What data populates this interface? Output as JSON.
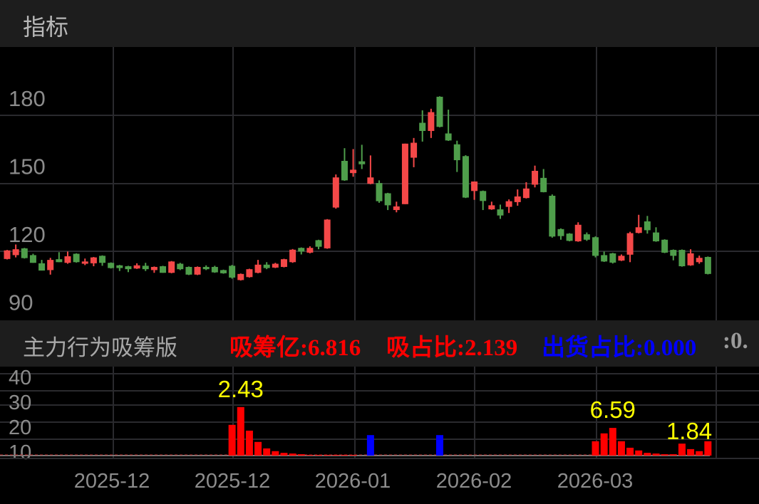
{
  "header": {
    "title": "指标"
  },
  "legend": {
    "indicator_name": "主力行为吸筹版",
    "absorb_amount": "吸筹亿:6.816",
    "absorb_ratio": "吸占比:2.139",
    "ship_ratio": "出货占比:0.000",
    "truncated": ":0."
  },
  "colors": {
    "up": "#f44848",
    "down": "#4f9e4b",
    "absorb": "#ff0000",
    "ship": "#0000ff",
    "annotation": "#ffff00",
    "legend_red": "#ff0000",
    "legend_blue": "#0000ff",
    "axis_text": "#8c8c8c"
  },
  "chart_data": [
    {
      "type": "candlestick",
      "yticks": [
        180,
        150,
        120,
        90
      ],
      "ylim": [
        90,
        180
      ],
      "grid": true,
      "ohlc": [
        [
          116.6,
          120.6,
          116.4,
          120.4
        ],
        [
          118.3,
          123.0,
          117.3,
          120.9
        ],
        [
          121.3,
          121.5,
          116.8,
          117.0
        ],
        [
          118.3,
          118.9,
          114.9,
          114.9
        ],
        [
          114.7,
          116.2,
          111.5,
          111.5
        ],
        [
          111.7,
          117.1,
          109.7,
          116.2
        ],
        [
          116.5,
          119.6,
          115.2,
          115.2
        ],
        [
          114.9,
          119.9,
          114.5,
          117.8
        ],
        [
          118.9,
          119.1,
          115.0,
          115.2
        ],
        [
          114.5,
          116.8,
          113.9,
          115.5
        ],
        [
          114.7,
          117.5,
          113.4,
          117.3
        ],
        [
          118.0,
          118.2,
          113.6,
          114.9
        ],
        [
          114.9,
          115.1,
          112.4,
          112.6
        ],
        [
          113.8,
          114.0,
          111.3,
          112.6
        ],
        [
          113.4,
          113.6,
          110.8,
          112.1
        ],
        [
          112.4,
          114.7,
          112.2,
          113.8
        ],
        [
          113.6,
          114.9,
          111.3,
          112.1
        ],
        [
          111.7,
          113.3,
          110.5,
          113.1
        ],
        [
          113.4,
          113.6,
          110.5,
          110.5
        ],
        [
          110.5,
          115.7,
          110.3,
          115.5
        ],
        [
          114.5,
          114.9,
          111.7,
          112.1
        ],
        [
          113.1,
          113.3,
          109.5,
          109.7
        ],
        [
          109.7,
          113.3,
          109.5,
          113.1
        ],
        [
          113.1,
          113.8,
          111.7,
          112.1
        ],
        [
          113.1,
          113.6,
          110.5,
          110.7
        ],
        [
          111.7,
          111.9,
          110.1,
          110.3
        ],
        [
          113.6,
          114.0,
          107.9,
          108.4
        ],
        [
          107.3,
          110.2,
          107.1,
          110.0
        ],
        [
          108.6,
          112.3,
          108.4,
          112.1
        ],
        [
          110.5,
          116.2,
          110.3,
          114.1
        ],
        [
          114.1,
          115.2,
          112.1,
          112.6
        ],
        [
          112.8,
          114.9,
          112.6,
          114.5
        ],
        [
          113.1,
          116.7,
          112.9,
          116.5
        ],
        [
          115.2,
          121.0,
          114.9,
          120.7
        ],
        [
          121.5,
          121.7,
          118.6,
          119.9
        ],
        [
          119.4,
          122.2,
          119.1,
          121.5
        ],
        [
          124.9,
          125.1,
          120.9,
          122.0
        ],
        [
          121.3,
          134.2,
          121.1,
          134.0
        ],
        [
          139.3,
          153.9,
          138.8,
          152.6
        ],
        [
          159.9,
          165.5,
          151.1,
          151.3
        ],
        [
          154.5,
          165.1,
          152.9,
          156.0
        ],
        [
          159.7,
          167.0,
          156.3,
          158.4
        ],
        [
          149.8,
          162.3,
          149.6,
          152.6
        ],
        [
          150.1,
          151.3,
          141.4,
          142.1
        ],
        [
          145.6,
          145.8,
          138.2,
          140.3
        ],
        [
          138.2,
          141.9,
          137.2,
          139.8
        ],
        [
          140.8,
          167.5,
          140.8,
          167.5
        ],
        [
          161.3,
          170.0,
          157.1,
          167.9
        ],
        [
          176.7,
          182.2,
          168.4,
          173.1
        ],
        [
          173.1,
          182.9,
          170.0,
          181.4
        ],
        [
          188.2,
          188.4,
          174.7,
          174.9
        ],
        [
          172.0,
          182.5,
          168.7,
          168.9
        ],
        [
          167.2,
          168.8,
          155.0,
          160.2
        ],
        [
          162.0,
          162.4,
          143.5,
          143.7
        ],
        [
          146.6,
          150.8,
          142.7,
          150.8
        ],
        [
          146.6,
          146.8,
          138.2,
          142.2
        ],
        [
          138.5,
          141.9,
          138.3,
          140.3
        ],
        [
          138.5,
          140.6,
          134.3,
          135.8
        ],
        [
          139.6,
          142.9,
          136.9,
          142.1
        ],
        [
          141.7,
          147.3,
          140.1,
          144.2
        ],
        [
          143.5,
          150.5,
          143.3,
          147.7
        ],
        [
          149.4,
          157.8,
          148.2,
          155.5
        ],
        [
          152.4,
          156.3,
          146.0,
          146.1
        ],
        [
          144.5,
          145.1,
          126.0,
          126.5
        ],
        [
          129.8,
          130.1,
          125.1,
          126.7
        ],
        [
          127.8,
          128.0,
          124.4,
          124.6
        ],
        [
          124.4,
          132.8,
          124.2,
          131.7
        ],
        [
          127.5,
          128.3,
          124.6,
          125.1
        ],
        [
          126.2,
          126.6,
          117.3,
          118.0
        ],
        [
          118.3,
          119.9,
          115.3,
          115.5
        ],
        [
          119.1,
          119.3,
          114.6,
          115.0
        ],
        [
          115.9,
          118.6,
          115.7,
          118.0
        ],
        [
          118.5,
          128.6,
          115.2,
          128.0
        ],
        [
          128.1,
          136.1,
          127.9,
          130.6
        ],
        [
          133.2,
          135.6,
          127.8,
          129.3
        ],
        [
          128.3,
          130.6,
          124.2,
          124.4
        ],
        [
          125.1,
          125.3,
          119.2,
          119.4
        ],
        [
          120.6,
          120.8,
          116.0,
          118.0
        ],
        [
          120.6,
          120.8,
          113.2,
          113.4
        ],
        [
          113.8,
          120.9,
          113.6,
          119.1
        ],
        [
          115.2,
          118.1,
          114.5,
          117.1
        ],
        [
          117.5,
          117.7,
          109.8,
          110.0
        ]
      ]
    },
    {
      "type": "bar",
      "yticks": [
        "40",
        "30",
        "20",
        "10"
      ],
      "xticks": [
        "2025-12",
        "2025-12",
        "2026-01",
        "2026-02",
        "2026-03"
      ],
      "values": [
        0,
        0,
        0,
        0,
        0,
        0,
        0,
        0,
        0,
        0,
        0,
        0,
        0,
        0,
        0,
        0,
        0,
        0,
        0,
        0,
        0,
        0,
        0,
        0,
        0,
        0,
        9.0,
        14.2,
        7.3,
        4.0,
        2.1,
        1.3,
        0.8,
        0.6,
        0.4,
        0.2,
        0.2,
        0.2,
        0.2,
        0.2,
        0.2,
        0,
        6.0,
        0,
        0,
        0,
        0,
        0,
        0,
        0,
        6.0,
        0,
        0,
        0,
        0,
        0,
        0,
        0,
        0,
        0,
        0,
        0,
        0,
        0,
        0,
        0,
        0,
        0,
        4.2,
        6.5,
        8.1,
        4.2,
        2.3,
        1.5,
        0.8,
        0.6,
        0.4,
        0.4,
        3.5,
        1.9,
        1.3,
        4.2
      ],
      "kind": [
        "a",
        "a",
        "a",
        "a",
        "a",
        "a",
        "a",
        "a",
        "a",
        "a",
        "a",
        "a",
        "a",
        "a",
        "a",
        "a",
        "a",
        "a",
        "a",
        "a",
        "a",
        "a",
        "a",
        "a",
        "a",
        "a",
        "a",
        "a",
        "a",
        "a",
        "a",
        "a",
        "a",
        "a",
        "a",
        "a",
        "a",
        "a",
        "a",
        "a",
        "a",
        "a",
        "s",
        "a",
        "a",
        "a",
        "a",
        "a",
        "a",
        "a",
        "s",
        "a",
        "a",
        "a",
        "a",
        "a",
        "a",
        "a",
        "a",
        "a",
        "a",
        "a",
        "a",
        "a",
        "a",
        "a",
        "a",
        "a",
        "a",
        "a",
        "a",
        "a",
        "a",
        "a",
        "a",
        "a",
        "a",
        "a",
        "a",
        "a",
        "a",
        "a"
      ],
      "annotations": [
        {
          "index": 27,
          "text": "2.43"
        },
        {
          "index": 70,
          "text": "6.59"
        },
        {
          "index": 79,
          "text": "1.84"
        }
      ]
    }
  ]
}
